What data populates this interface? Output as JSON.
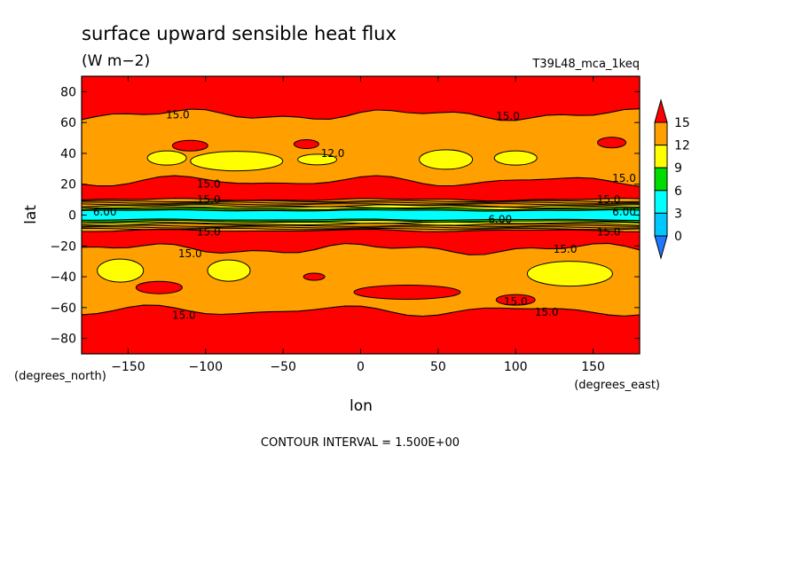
{
  "chart_data": {
    "type": "heatmap",
    "title": "surface upward sensible heat flux",
    "units": "(W m−2)",
    "run_label": "T39L48_mca_1keq",
    "xlabel": "lon",
    "ylabel": "lat",
    "x_units_label": "(degrees_east)",
    "y_units_label": "(degrees_north)",
    "xlim": [
      -180,
      180
    ],
    "ylim": [
      -90,
      90
    ],
    "x_ticks": [
      -150,
      -100,
      -50,
      0,
      50,
      100,
      150
    ],
    "y_ticks": [
      80,
      60,
      40,
      20,
      0,
      -20,
      -40,
      -60,
      -80
    ],
    "x_tick_labels": [
      "−150",
      "−100",
      "−50",
      "0",
      "50",
      "100",
      "150"
    ],
    "y_tick_labels": [
      "80",
      "60",
      "40",
      "20",
      "0",
      "−20",
      "−40",
      "−60",
      "−80"
    ],
    "colorbar": {
      "levels": [
        0,
        3,
        6,
        9,
        12,
        15
      ],
      "labels": [
        "15",
        "12",
        "9",
        "6",
        "3",
        "0"
      ],
      "colors": {
        "below_0": "#1e78ff",
        "0_3": "#00c8ff",
        "3_6": "#00ffff",
        "6_9": "#00dc00",
        "9_12": "#ffff00",
        "12_15": "#ffa000",
        "above_15": "#ff0000"
      }
    },
    "contour_interval_text": "CONTOUR INTERVAL = 1.500E+00",
    "contour_labels": [
      {
        "text": "15.0",
        "lon": -118,
        "lat": 65
      },
      {
        "text": "15.0",
        "lon": 95,
        "lat": 64
      },
      {
        "text": "12.0",
        "lon": -18,
        "lat": 40
      },
      {
        "text": "15.0",
        "lon": -98,
        "lat": 20
      },
      {
        "text": "15.0",
        "lon": 170,
        "lat": 24
      },
      {
        "text": "15.0",
        "lon": 160,
        "lat": 10
      },
      {
        "text": "15.0",
        "lon": -98,
        "lat": 10
      },
      {
        "text": "6.00",
        "lon": -165,
        "lat": 2
      },
      {
        "text": "6.00",
        "lon": 90,
        "lat": -3
      },
      {
        "text": "6.00",
        "lon": 170,
        "lat": 2
      },
      {
        "text": "15.0",
        "lon": -98,
        "lat": -11
      },
      {
        "text": "15.0",
        "lon": 160,
        "lat": -11
      },
      {
        "text": "15.0",
        "lon": -110,
        "lat": -25
      },
      {
        "text": "15.0",
        "lon": 132,
        "lat": -22
      },
      {
        "text": "15.0",
        "lon": 100,
        "lat": -56
      },
      {
        "text": "15.0",
        "lon": 120,
        "lat": -63
      },
      {
        "text": "15.0",
        "lon": -114,
        "lat": -65
      }
    ]
  }
}
